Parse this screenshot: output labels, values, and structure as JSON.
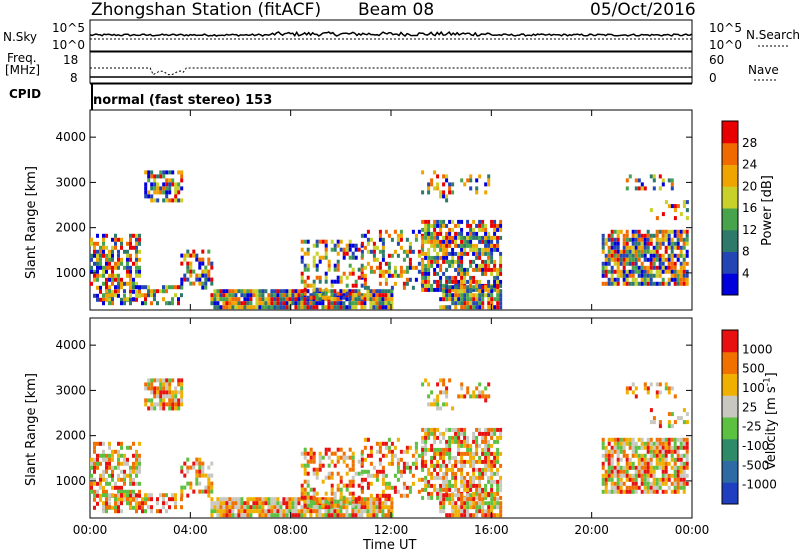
{
  "header": {
    "station": "Zhongshan Station (fitACF)",
    "beam": "Beam 08",
    "date": "05/Oct/2016"
  },
  "top_panel": {
    "left_label": "N.Sky",
    "right_label": "N.Search",
    "left_ticks": [
      "10^5",
      "10^0"
    ],
    "right_ticks": [
      "10^5",
      "10^0"
    ]
  },
  "freq_panel": {
    "label_line1": "Freq.",
    "label_line2": "[MHz]",
    "right_label": "Nave",
    "left_ticks": [
      "18",
      "8"
    ],
    "right_ticks": [
      "60",
      "0"
    ]
  },
  "cpid": {
    "label": "CPID",
    "mode": "normal (fast stereo) 153"
  },
  "chart_data": [
    {
      "type": "heatmap",
      "name": "power",
      "ylabel": "Slant Range [km]",
      "ylim": [
        180,
        4600
      ],
      "yticks": [
        "4000",
        "3000",
        "2000",
        "1000"
      ],
      "colorbar_label": "Power [dB]",
      "colorbar_ticks": [
        "28",
        "24",
        "20",
        "16",
        "12",
        "8",
        "4"
      ],
      "colorbar_colors": [
        "#0000dd",
        "#2346b4",
        "#2d7a6a",
        "#48a44c",
        "#c8d02a",
        "#f0a400",
        "#f06a00",
        "#e80000"
      ]
    },
    {
      "type": "heatmap",
      "name": "velocity",
      "ylabel": "Slant Range [km]",
      "ylim": [
        180,
        4600
      ],
      "yticks": [
        "4000",
        "3000",
        "2000",
        "1000"
      ],
      "colorbar_label": "Velocity [m s^-1]",
      "colorbar_ticks": [
        "1000",
        "500",
        "100",
        "25",
        "-25",
        "-100",
        "-500",
        "-1000"
      ],
      "colorbar_colors": [
        "#1f3fc0",
        "#2e6aa4",
        "#2f8a6a",
        "#5cc040",
        "#c8c8c0",
        "#f0b000",
        "#f07000",
        "#e81010"
      ],
      "xlabel": "Time UT",
      "xticks": [
        "00:00",
        "04:00",
        "08:00",
        "12:00",
        "16:00",
        "20:00",
        "00:00"
      ]
    }
  ]
}
